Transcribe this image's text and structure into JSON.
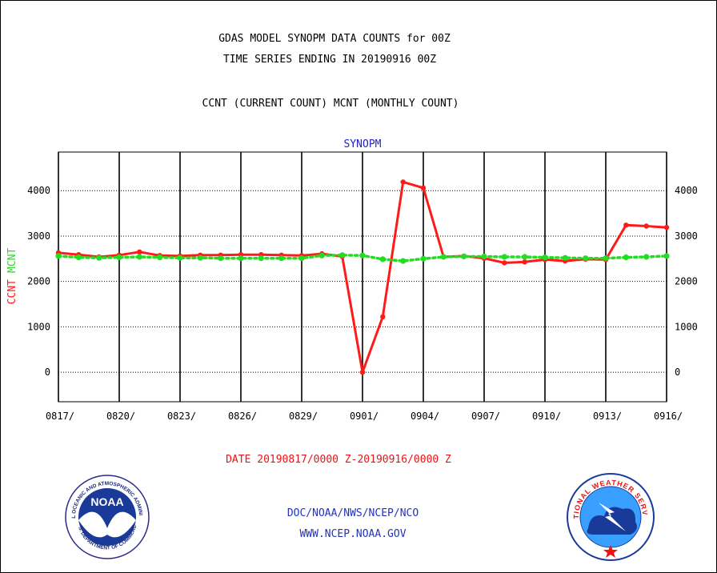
{
  "header": {
    "title_line1": "GDAS MODEL SYNOPM DATA COUNTS for 00Z",
    "title_line2": "TIME SERIES ENDING IN 20190916 00Z",
    "subtitle": "CCNT (CURRENT COUNT) MCNT (MONTHLY COUNT)"
  },
  "footer": {
    "date_range": "DATE 20190817/0000 Z-20190916/0000 Z",
    "org": "DOC/NOAA/NWS/NCEP/NCO",
    "url": "WWW.NCEP.NOAA.GOV"
  },
  "logos": {
    "noaa_text": "NOAA",
    "noaa_ring_text": "NATIONAL OCEANIC AND ATMOSPHERIC ADMINISTRATION",
    "noaa_ring_text_bottom": "U.S. DEPARTMENT OF COMMERCE",
    "nws_ring_text": "NATIONAL WEATHER SERVICE"
  },
  "colors": {
    "ccnt": "#ff1a1a",
    "mcnt": "#22dd22",
    "panel_title": "#2222cc",
    "footer_blue": "#2233bb",
    "footer_red": "#ee1111"
  },
  "chart_data": {
    "type": "line",
    "title": "SYNOPM",
    "ylabel_ccnt": "CCNT",
    "ylabel_mcnt": "MCNT",
    "ylim": [
      -650,
      4850
    ],
    "yticks": [
      0,
      1000,
      2000,
      3000,
      4000
    ],
    "xlim_day": [
      0,
      30
    ],
    "x": [
      "0817",
      "0818",
      "0819",
      "0820",
      "0821",
      "0822",
      "0823",
      "0824",
      "0825",
      "0826",
      "0827",
      "0828",
      "0829",
      "0830",
      "0831",
      "0901",
      "0902",
      "0903",
      "0904",
      "0905",
      "0906",
      "0907",
      "0908",
      "0909",
      "0910",
      "0911",
      "0912",
      "0913",
      "0914",
      "0915",
      "0916"
    ],
    "x_tick_labels": [
      "0817/",
      "0820/",
      "0823/",
      "0826/",
      "0829/",
      "0901/",
      "0904/",
      "0907/",
      "0910/",
      "0913/",
      "0916/"
    ],
    "x_tick_days": [
      0,
      3,
      6,
      9,
      12,
      15,
      18,
      21,
      24,
      27,
      30
    ],
    "series": [
      {
        "name": "CCNT",
        "style": "solid",
        "values": [
          2630,
          2590,
          2540,
          2580,
          2650,
          2570,
          2560,
          2580,
          2580,
          2590,
          2590,
          2580,
          2570,
          2610,
          2550,
          0,
          1220,
          4190,
          4060,
          2540,
          2560,
          2510,
          2410,
          2430,
          2480,
          2450,
          2490,
          2480,
          3240,
          3220,
          3190
        ]
      },
      {
        "name": "MCNT",
        "style": "dotted",
        "values": [
          2560,
          2530,
          2520,
          2530,
          2540,
          2530,
          2520,
          2520,
          2510,
          2510,
          2510,
          2510,
          2510,
          2570,
          2580,
          2570,
          2490,
          2450,
          2500,
          2540,
          2550,
          2550,
          2540,
          2540,
          2530,
          2520,
          2510,
          2510,
          2530,
          2540,
          2560
        ]
      }
    ],
    "grid": true
  }
}
